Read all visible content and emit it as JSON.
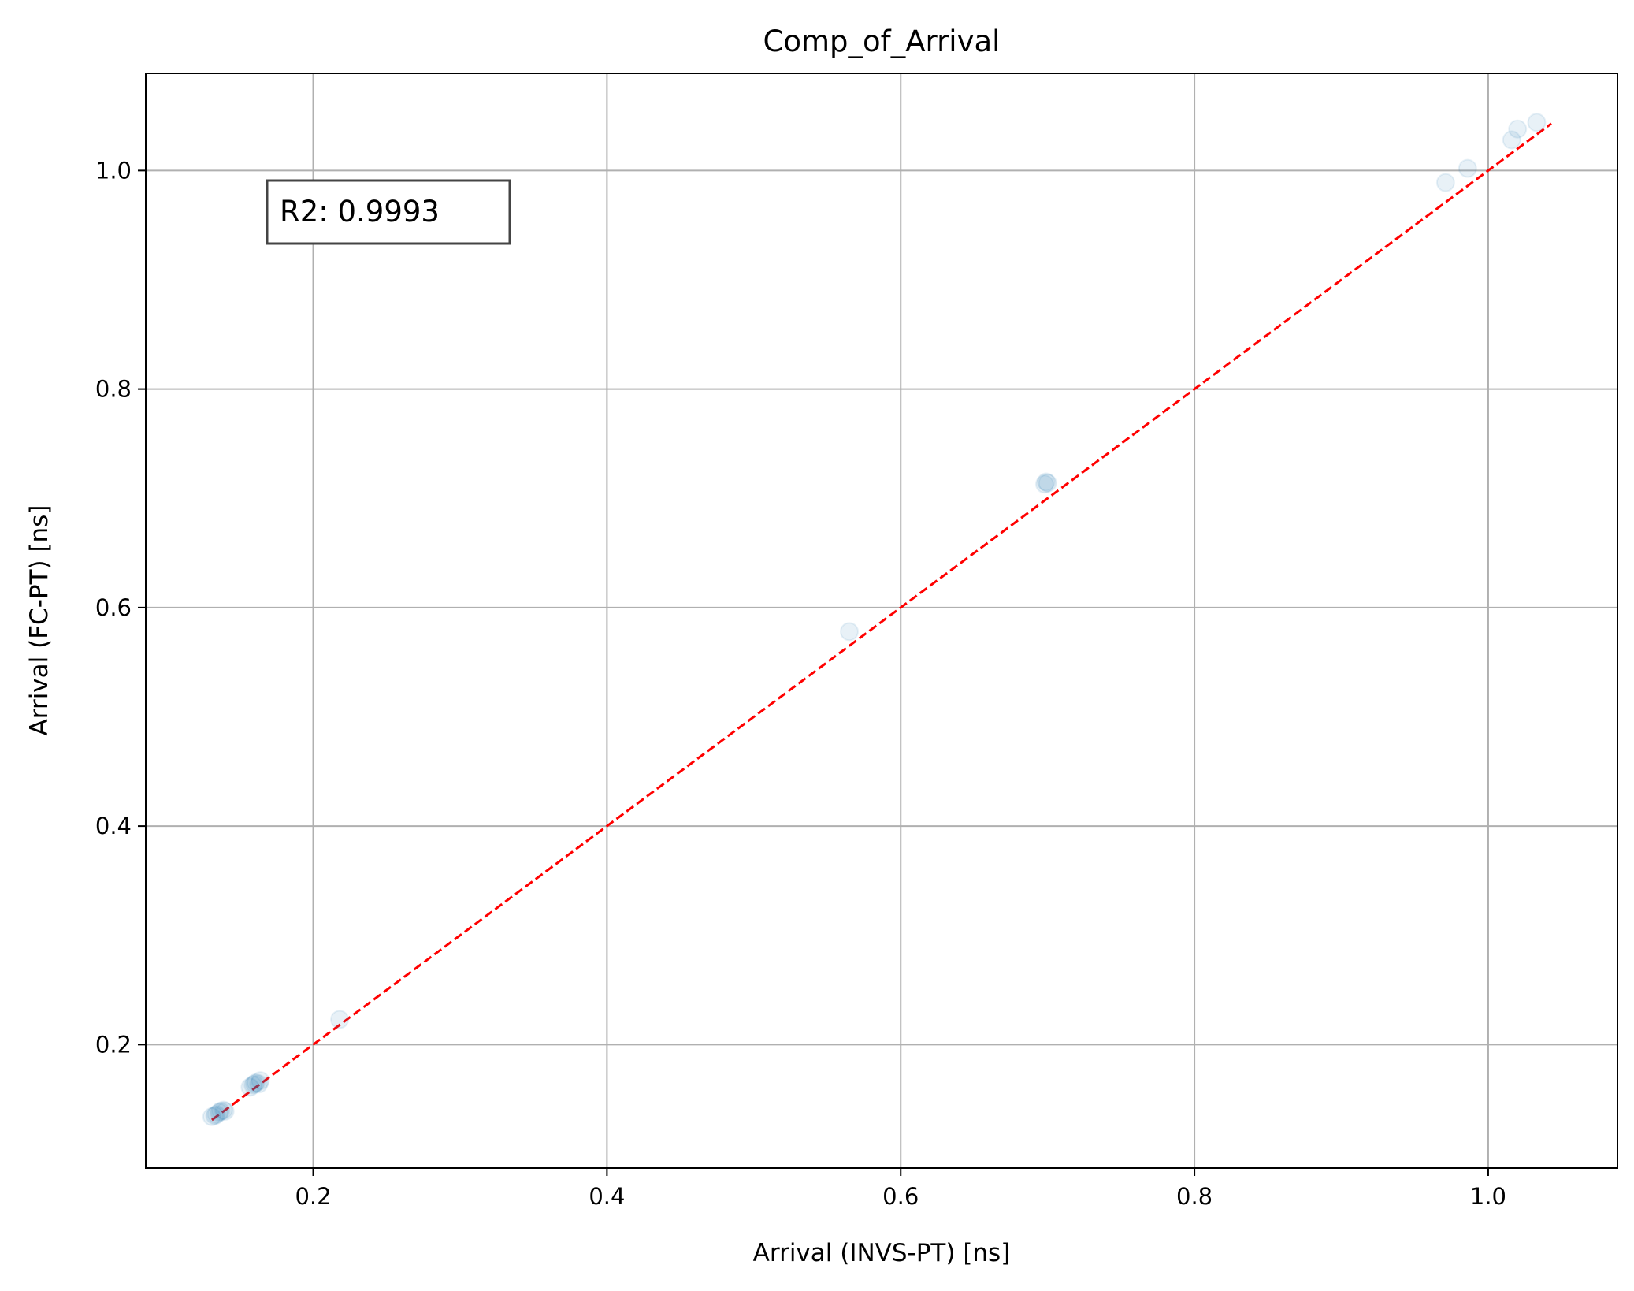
{
  "chart_data": {
    "type": "scatter",
    "title": "Comp_of_Arrival",
    "xlabel": "Arrival (INVS-PT) [ns]",
    "ylabel": "Arrival (FC-PT) [ns]",
    "xlim": [
      0.086,
      1.088
    ],
    "ylim": [
      0.087,
      1.089
    ],
    "xticks": [
      0.2,
      0.4,
      0.6,
      0.8,
      1.0
    ],
    "yticks": [
      0.2,
      0.4,
      0.6,
      0.8,
      1.0
    ],
    "xtick_labels": [
      "0.2",
      "0.4",
      "0.6",
      "0.8",
      "1.0"
    ],
    "ytick_labels": [
      "0.2",
      "0.4",
      "0.6",
      "0.8",
      "1.0"
    ],
    "grid": true,
    "point_color": "#1f77b4",
    "line_color": "#ff0000",
    "points": [
      {
        "x": 0.131,
        "y": 0.134
      },
      {
        "x": 0.133,
        "y": 0.135
      },
      {
        "x": 0.134,
        "y": 0.136
      },
      {
        "x": 0.136,
        "y": 0.138
      },
      {
        "x": 0.137,
        "y": 0.139
      },
      {
        "x": 0.139,
        "y": 0.14
      },
      {
        "x": 0.14,
        "y": 0.139
      },
      {
        "x": 0.157,
        "y": 0.161
      },
      {
        "x": 0.159,
        "y": 0.163
      },
      {
        "x": 0.16,
        "y": 0.164
      },
      {
        "x": 0.161,
        "y": 0.165
      },
      {
        "x": 0.163,
        "y": 0.164
      },
      {
        "x": 0.164,
        "y": 0.167
      },
      {
        "x": 0.218,
        "y": 0.223
      },
      {
        "x": 0.565,
        "y": 0.578
      },
      {
        "x": 0.698,
        "y": 0.713
      },
      {
        "x": 0.699,
        "y": 0.715
      },
      {
        "x": 0.7,
        "y": 0.714
      },
      {
        "x": 0.971,
        "y": 0.989
      },
      {
        "x": 0.986,
        "y": 1.002
      },
      {
        "x": 1.016,
        "y": 1.028
      },
      {
        "x": 1.02,
        "y": 1.038
      },
      {
        "x": 1.033,
        "y": 1.044
      }
    ],
    "reference_line": {
      "x": [
        0.131,
        1.043
      ],
      "y": [
        0.131,
        1.043
      ]
    },
    "annotation": "R2: 0.9993"
  }
}
